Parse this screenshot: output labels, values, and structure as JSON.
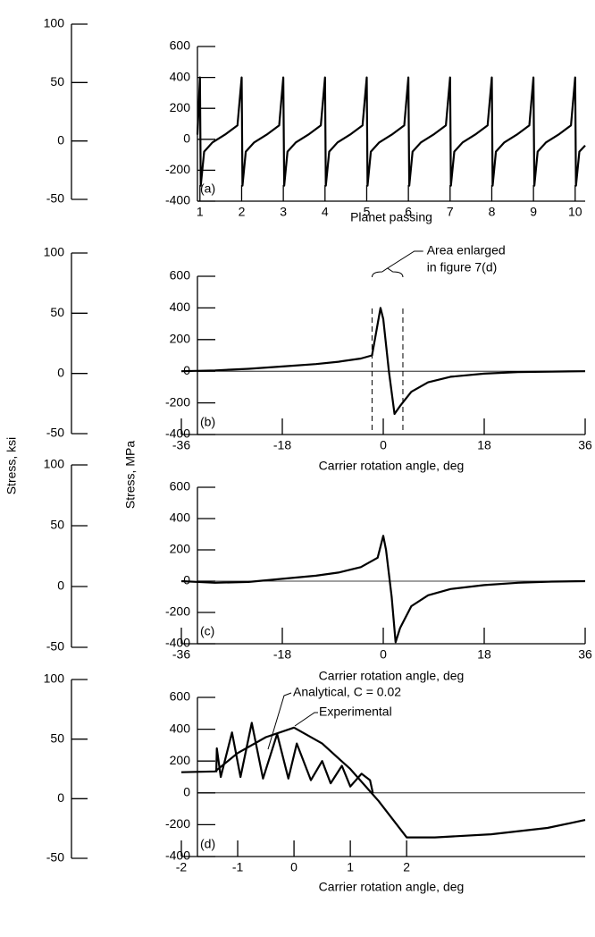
{
  "chart_data": [
    {
      "type": "line",
      "panel_label": "(a)",
      "xlabel": "Planet passing",
      "xlim": [
        0.94,
        10.24
      ],
      "xticks": [
        1,
        2,
        3,
        4,
        5,
        6,
        7,
        8,
        9,
        10
      ],
      "ylim": [
        -400,
        600
      ],
      "yticks": [
        -400,
        -200,
        0,
        200,
        400,
        600
      ],
      "y2lim": [
        -50,
        100
      ],
      "y2ticks": [
        -50,
        0,
        50,
        100
      ],
      "zero_line": false,
      "series": [
        {
          "color": "#000000",
          "x": [
            0.94,
            1,
            1.02,
            1.1,
            1.3,
            1.6,
            1.9,
            2,
            2.02,
            2.1,
            2.3,
            2.6,
            2.9,
            3,
            3.02,
            3.1,
            3.3,
            3.6,
            3.9,
            4,
            4.02,
            4.1,
            4.3,
            4.6,
            4.9,
            5,
            5.02,
            5.1,
            5.3,
            5.6,
            5.9,
            6,
            6.02,
            6.1,
            6.3,
            6.6,
            6.9,
            7,
            7.02,
            7.1,
            7.3,
            7.6,
            7.9,
            8,
            8.02,
            8.1,
            8.3,
            8.6,
            8.9,
            9,
            9.02,
            9.1,
            9.3,
            9.6,
            9.9,
            10,
            10.02,
            10.1,
            10.24
          ],
          "values": [
            30,
            400,
            -300,
            -80,
            -20,
            30,
            90,
            400,
            -300,
            -80,
            -20,
            30,
            90,
            400,
            -300,
            -80,
            -20,
            30,
            90,
            400,
            -300,
            -80,
            -20,
            30,
            90,
            400,
            -300,
            -80,
            -20,
            30,
            90,
            400,
            -300,
            -80,
            -20,
            30,
            90,
            400,
            -300,
            -80,
            -20,
            30,
            90,
            400,
            -300,
            -80,
            -20,
            30,
            90,
            400,
            -300,
            -80,
            -20,
            30,
            90,
            400,
            -300,
            -80,
            -40
          ]
        }
      ]
    },
    {
      "type": "line",
      "panel_label": "(b)",
      "xlabel": "Carrier rotation angle, deg",
      "ylabel": "Stress, MPa",
      "y2label": "Stress, ksi",
      "annotation": [
        "Area enlarged",
        "in figure 7(d)"
      ],
      "marked_range": [
        -2,
        3.5
      ],
      "xlim": [
        -36,
        36
      ],
      "xticks": [
        -36,
        -18,
        0,
        18,
        36
      ],
      "ylim": [
        -400,
        600
      ],
      "yticks": [
        -400,
        -200,
        0,
        200,
        400,
        600
      ],
      "y2lim": [
        -50,
        100
      ],
      "y2ticks": [
        -50,
        0,
        50,
        100
      ],
      "zero_line": true,
      "series": [
        {
          "color": "#000000",
          "x": [
            -36,
            -30,
            -24,
            -18,
            -12,
            -8,
            -4,
            -2,
            -1.5,
            -0.5,
            0,
            1,
            2,
            3,
            5,
            8,
            12,
            18,
            24,
            30,
            36
          ],
          "values": [
            0,
            5,
            15,
            30,
            45,
            60,
            80,
            100,
            200,
            400,
            330,
            0,
            -270,
            -220,
            -130,
            -70,
            -35,
            -15,
            -5,
            -2,
            0
          ]
        }
      ]
    },
    {
      "type": "line",
      "panel_label": "(c)",
      "xlabel": "Carrier rotation angle, deg",
      "xlim": [
        -36,
        36
      ],
      "xticks": [
        -36,
        -18,
        0,
        18,
        36
      ],
      "ylim": [
        -400,
        600
      ],
      "yticks": [
        -400,
        -200,
        0,
        200,
        400,
        600
      ],
      "y2lim": [
        -50,
        100
      ],
      "y2ticks": [
        -50,
        0,
        50,
        100
      ],
      "zero_line": true,
      "series": [
        {
          "color": "#000000",
          "x": [
            -36,
            -30,
            -24,
            -18,
            -12,
            -8,
            -4,
            -1,
            0,
            0.5,
            1.5,
            2.2,
            3,
            5,
            8,
            12,
            18,
            24,
            30,
            36
          ],
          "values": [
            0,
            -10,
            -5,
            15,
            35,
            55,
            90,
            150,
            290,
            200,
            -100,
            -390,
            -300,
            -160,
            -90,
            -50,
            -25,
            -10,
            -3,
            0
          ]
        }
      ]
    },
    {
      "type": "line",
      "panel_label": "(d)",
      "xlabel": "Carrier rotation angle, deg",
      "xlim": [
        -2,
        5.17
      ],
      "xticks": [
        -2,
        -1,
        0,
        1,
        2
      ],
      "ylim": [
        -400,
        600
      ],
      "yticks": [
        -400,
        -200,
        0,
        200,
        400,
        600
      ],
      "y2lim": [
        -50,
        100
      ],
      "y2ticks": [
        -50,
        0,
        50,
        100
      ],
      "zero_line": true,
      "series": [
        {
          "name": "Analytical, C = 0.02",
          "color": "#000000",
          "x": [
            -1.38,
            -1.37,
            -1.3,
            -1.1,
            -0.95,
            -0.75,
            -0.55,
            -0.3,
            -0.1,
            0.05,
            0.3,
            0.5,
            0.65,
            0.85,
            1.0,
            1.2,
            1.35,
            1.4
          ],
          "values": [
            130,
            280,
            100,
            380,
            100,
            440,
            90,
            370,
            90,
            310,
            80,
            200,
            60,
            170,
            40,
            120,
            80,
            0
          ]
        },
        {
          "name": "Experimental",
          "color": "#000000",
          "x": [
            -2,
            -1.4,
            -1,
            -0.5,
            0,
            0.5,
            1,
            1.5,
            2,
            2.5,
            3.5,
            4.5,
            5.17
          ],
          "values": [
            130,
            135,
            250,
            350,
            410,
            310,
            150,
            -50,
            -280,
            -280,
            -260,
            -220,
            -170
          ]
        }
      ]
    }
  ]
}
